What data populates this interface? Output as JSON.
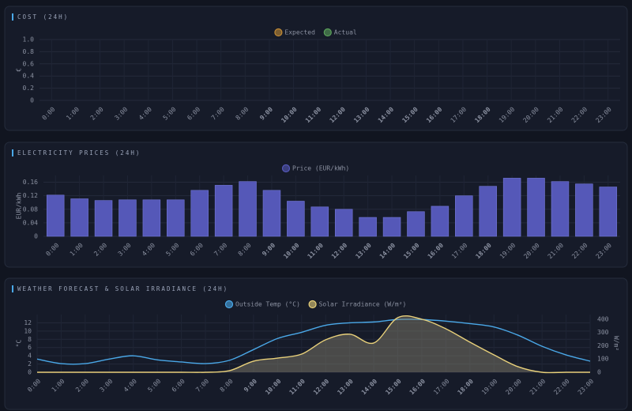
{
  "chart_data": [
    {
      "type": "bar",
      "title": "COST (24H)",
      "y_label": "€",
      "categories": [
        "0:00",
        "1:00",
        "2:00",
        "3:00",
        "4:00",
        "5:00",
        "6:00",
        "7:00",
        "8:00",
        "9:00",
        "10:00",
        "11:00",
        "12:00",
        "13:00",
        "14:00",
        "15:00",
        "16:00",
        "17:00",
        "18:00",
        "19:00",
        "20:00",
        "21:00",
        "22:00",
        "23:00"
      ],
      "series": [
        {
          "name": "Expected",
          "color": "#c08a35",
          "values": [
            null,
            null,
            null,
            null,
            null,
            null,
            null,
            null,
            null,
            null,
            null,
            null,
            null,
            null,
            null,
            null,
            null,
            null,
            null,
            null,
            null,
            null,
            null,
            null
          ]
        },
        {
          "name": "Actual",
          "color": "#5aa05a",
          "values": [
            null,
            null,
            null,
            null,
            null,
            null,
            null,
            null,
            null,
            null,
            null,
            null,
            null,
            null,
            null,
            null,
            null,
            null,
            null,
            null,
            null,
            null,
            null,
            null
          ]
        }
      ],
      "ylim": [
        0,
        1
      ],
      "yticks": [
        0,
        0.2,
        0.4,
        0.6,
        0.8,
        {
          "value": 1,
          "label": "1.0"
        }
      ],
      "grid": true,
      "legend": "top",
      "highlighted": [
        9,
        10,
        11,
        12,
        13,
        14,
        15,
        16,
        18
      ],
      "highlight_color": "#e8743b"
    },
    {
      "type": "bar",
      "title": "ELECTRICITY PRICES (24H)",
      "y_label": "EUR/kWh",
      "y_label_color": "#7b80e0",
      "categories": [
        "0:00",
        "1:00",
        "2:00",
        "3:00",
        "4:00",
        "5:00",
        "6:00",
        "7:00",
        "8:00",
        "9:00",
        "10:00",
        "11:00",
        "12:00",
        "13:00",
        "14:00",
        "15:00",
        "16:00",
        "17:00",
        "18:00",
        "19:00",
        "20:00",
        "21:00",
        "22:00",
        "23:00"
      ],
      "series": [
        {
          "name": "Price (EUR/kWh)",
          "color": "#5558b8",
          "values": [
            0.122,
            0.111,
            0.106,
            0.108,
            0.108,
            0.108,
            0.136,
            0.151,
            0.162,
            0.136,
            0.104,
            0.087,
            0.08,
            0.056,
            0.056,
            0.073,
            0.089,
            0.12,
            0.148,
            0.172,
            0.172,
            0.162,
            0.155,
            0.146
          ]
        }
      ],
      "ylim": [
        0,
        0.18
      ],
      "yticks": [
        0,
        0.04,
        0.08,
        0.12,
        0.16
      ],
      "grid": true,
      "legend": "top",
      "highlighted": [
        9,
        10,
        11,
        12,
        13,
        14,
        15,
        16,
        18
      ],
      "highlight_color": "#e8743b"
    },
    {
      "type": "line",
      "title": "WEATHER FORECAST & SOLAR IRRADIANCE (24H)",
      "y_label": "°C",
      "y_label_color": "#4aa8e8",
      "y2_label": "W/m²",
      "y2_label_color": "#e8d07a",
      "categories": [
        "0:00",
        "1:00",
        "2:00",
        "3:00",
        "4:00",
        "5:00",
        "6:00",
        "7:00",
        "8:00",
        "9:00",
        "10:00",
        "11:00",
        "12:00",
        "13:00",
        "14:00",
        "15:00",
        "16:00",
        "17:00",
        "18:00",
        "19:00",
        "20:00",
        "21:00",
        "22:00",
        "23:00"
      ],
      "series": [
        {
          "name": "Outside Temp (°C)",
          "color": "#4aa8e8",
          "values": [
            3.2,
            2.1,
            2.1,
            3.2,
            4.0,
            3.0,
            2.5,
            2.1,
            2.9,
            5.5,
            8.2,
            9.7,
            11.4,
            12.0,
            12.2,
            12.8,
            12.8,
            12.4,
            11.8,
            11.0,
            9.0,
            6.3,
            4.2,
            2.7
          ]
        },
        {
          "name": "Solar Irradiance (W/m²)",
          "color": "#e8d07a",
          "axis": "y2",
          "fill": true,
          "values": [
            0,
            0,
            0,
            0,
            0,
            0,
            0,
            0,
            12,
            84,
            107,
            137,
            245,
            287,
            221,
            412,
            400,
            328,
            227,
            131,
            42,
            0,
            0,
            0
          ]
        }
      ],
      "ylim": [
        0,
        14
      ],
      "yticks": [
        0,
        2,
        4,
        6,
        8,
        10,
        12
      ],
      "y2lim": [
        0,
        435
      ],
      "y2ticks": [
        0,
        100,
        200,
        300,
        400
      ],
      "grid": true,
      "legend": "top",
      "highlighted": [
        9,
        10,
        11,
        12,
        13,
        14,
        15,
        16,
        18
      ],
      "highlight_color": "#e8743b"
    }
  ]
}
